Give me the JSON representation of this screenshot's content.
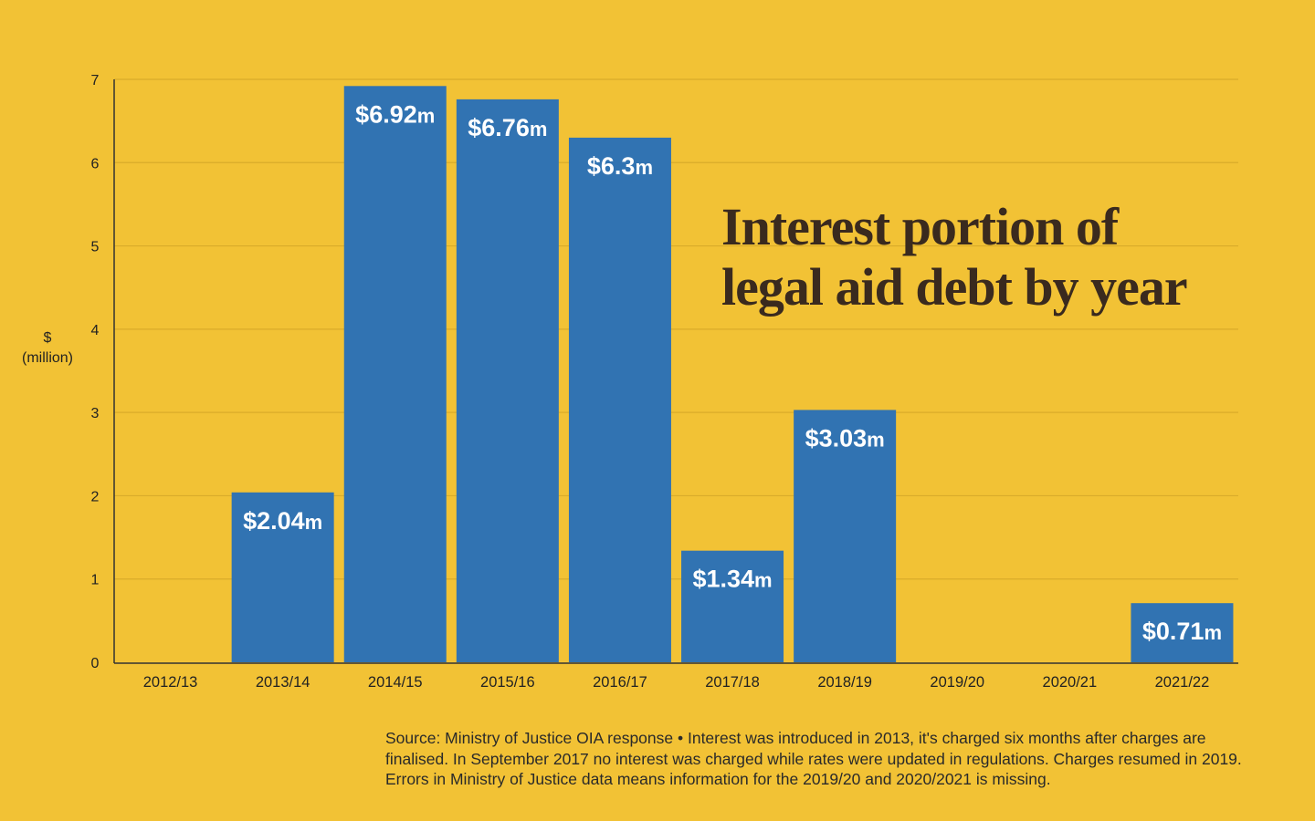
{
  "colors": {
    "background": "#f2c235",
    "bar": "#3173b2",
    "gridline": "#d9ab2a",
    "axis": "#333333",
    "title": "#3a2a1e",
    "bar_label": "#ffffff"
  },
  "chart_data": {
    "type": "bar",
    "title_lines": [
      "Interest portion of",
      "legal aid debt by year"
    ],
    "ylabel_lines": [
      "$",
      "(million)"
    ],
    "xlabel": "",
    "ylim": [
      0,
      7
    ],
    "yticks": [
      "0",
      "1",
      "2",
      "3",
      "4",
      "5",
      "6",
      "7"
    ],
    "grid": true,
    "categories": [
      "2012/13",
      "2013/14",
      "2014/15",
      "2015/16",
      "2016/17",
      "2017/18",
      "2018/19",
      "2019/20",
      "2020/21",
      "2021/22"
    ],
    "values": [
      0,
      2.04,
      6.92,
      6.76,
      6.3,
      1.34,
      3.03,
      0,
      0,
      0.71
    ],
    "data_labels": [
      null,
      {
        "num": "$2.04",
        "unit": "m"
      },
      {
        "num": "$6.92",
        "unit": "m"
      },
      {
        "num": "$6.76",
        "unit": "m"
      },
      {
        "num": "$6.3",
        "unit": "m"
      },
      {
        "num": "$1.34",
        "unit": "m"
      },
      {
        "num": "$3.03",
        "unit": "m"
      },
      null,
      null,
      {
        "num": "$0.71",
        "unit": "m"
      }
    ]
  },
  "footnote": "Source: Ministry of Justice OIA response • Interest was introduced in 2013, it's charged six months after charges are finalised. In September 2017 no interest was charged while rates were updated in regulations. Charges resumed in 2019. Errors in Ministry of Justice data means information for the 2019/20 and 2020/2021 is missing."
}
